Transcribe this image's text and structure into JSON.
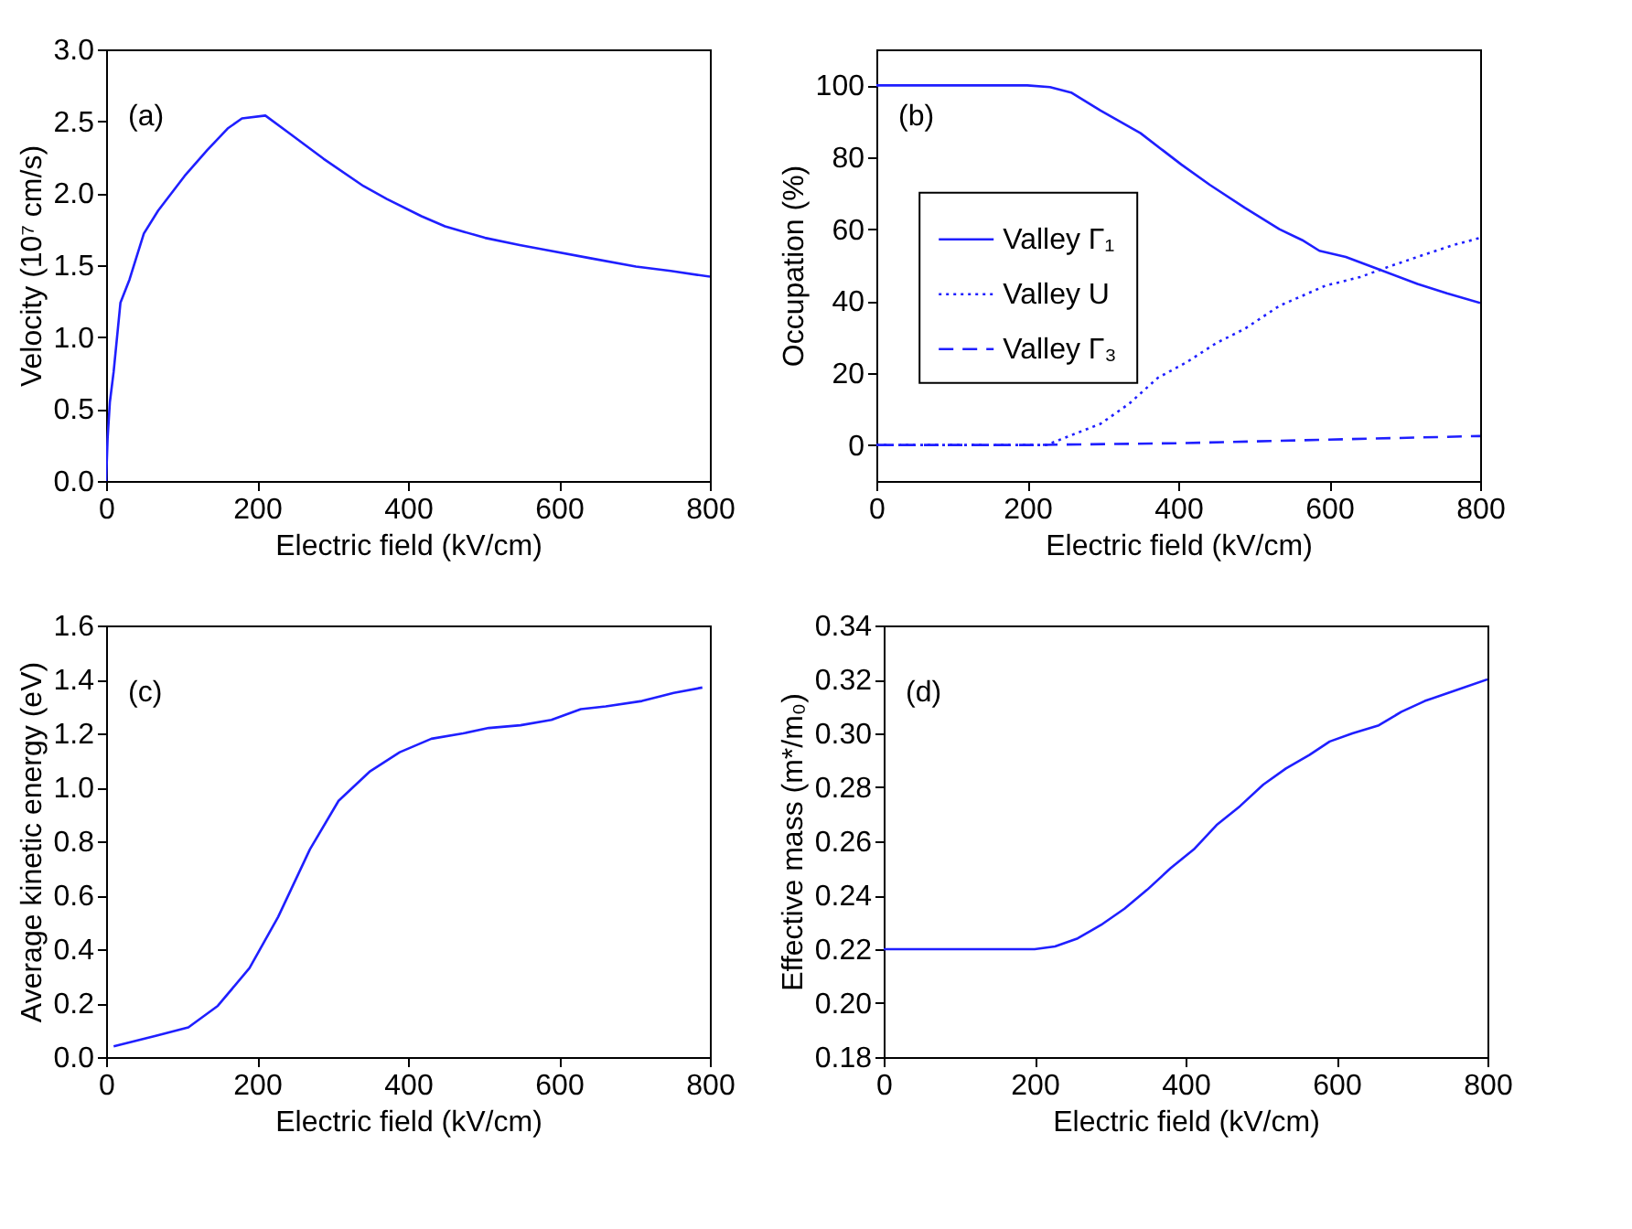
{
  "chart_data": [
    {
      "type": "line",
      "xlabel": "Electric field (kV/cm)",
      "ylabel": "Velocity (10⁷ cm/s)",
      "annotations": [
        "(a)"
      ],
      "xlim": [
        0,
        800
      ],
      "xticks": [
        0,
        200,
        400,
        600,
        800
      ],
      "ylim": [
        0,
        3.0
      ],
      "yticks": [
        {
          "value": 0,
          "label": "0.0"
        },
        {
          "value": 0.5,
          "label": "0.5"
        },
        {
          "value": 1,
          "label": "1.0"
        },
        {
          "value": 1.5,
          "label": "1.5"
        },
        {
          "value": 2,
          "label": "2.0"
        },
        {
          "value": 2.5,
          "label": "2.5"
        },
        {
          "value": 3,
          "label": "3.0"
        }
      ],
      "series": [
        {
          "color": "#1f1fff",
          "line_style": "solid",
          "x": [
            0,
            2,
            5,
            10,
            19,
            31,
            50,
            69,
            104,
            134,
            161,
            180,
            211,
            242,
            288,
            341,
            372,
            418,
            449,
            502,
            548,
            579,
            640,
            702,
            748,
            800
          ],
          "values": [
            0,
            0.3,
            0.55,
            0.76,
            1.24,
            1.4,
            1.72,
            1.88,
            2.12,
            2.3,
            2.45,
            2.52,
            2.54,
            2.42,
            2.24,
            2.05,
            1.96,
            1.84,
            1.77,
            1.69,
            1.64,
            1.61,
            1.55,
            1.49,
            1.46,
            1.42
          ]
        }
      ]
    },
    {
      "type": "line",
      "xlabel": "Electric field (kV/cm)",
      "ylabel": "Occupation (%)",
      "annotations": [
        "(b)"
      ],
      "xlim": [
        0,
        800
      ],
      "xticks": [
        0,
        200,
        400,
        600,
        800
      ],
      "ylim": [
        -10,
        110
      ],
      "yticks": [
        0,
        20,
        40,
        60,
        80,
        100
      ],
      "legend": "left",
      "series": [
        {
          "name": "Valley Γ₁",
          "color": "#1f1fff",
          "line_style": "solid",
          "x": [
            0,
            200,
            230,
            258,
            297,
            350,
            404,
            442,
            488,
            534,
            564,
            587,
            622,
            664,
            717,
            756,
            800
          ],
          "values": [
            100,
            100,
            99.5,
            98,
            93,
            86.7,
            78,
            72.3,
            66,
            60,
            57,
            54,
            52.3,
            49,
            44.8,
            42.2,
            39.5
          ]
        },
        {
          "name": "Valley U",
          "color": "#1f1fff",
          "line_style": "dotted",
          "x": [
            0,
            225,
            258,
            297,
            335,
            373,
            411,
            450,
            488,
            534,
            595,
            641,
            679,
            717,
            763,
            800
          ],
          "values": [
            0,
            0,
            2.7,
            5.9,
            11.5,
            18.7,
            23,
            28.3,
            32.3,
            38.7,
            44.3,
            46.7,
            49.6,
            52.3,
            55.5,
            57.6
          ]
        },
        {
          "name": "Valley Γ₃",
          "color": "#1f1fff",
          "line_style": "dashed",
          "x": [
            0,
            200,
            400,
            600,
            800
          ],
          "values": [
            0,
            0,
            0.5,
            1.5,
            2.5
          ]
        }
      ]
    },
    {
      "type": "line",
      "xlabel": "Electric field (kV/cm)",
      "ylabel": "Average kinetic energy (eV)",
      "annotations": [
        "(c)"
      ],
      "xlim": [
        0,
        800
      ],
      "xticks": [
        0,
        200,
        400,
        600,
        800
      ],
      "ylim": [
        0,
        1.6
      ],
      "yticks": [
        {
          "value": 0,
          "label": "0.0"
        },
        {
          "value": 0.2,
          "label": "0.2"
        },
        {
          "value": 0.4,
          "label": "0.4"
        },
        {
          "value": 0.6,
          "label": "0.6"
        },
        {
          "value": 0.8,
          "label": "0.8"
        },
        {
          "value": 1,
          "label": "1.0"
        },
        {
          "value": 1.2,
          "label": "1.2"
        },
        {
          "value": 1.4,
          "label": "1.4"
        },
        {
          "value": 1.6,
          "label": "1.6"
        }
      ],
      "series": [
        {
          "color": "#1f1fff",
          "line_style": "solid",
          "x": [
            10,
            67,
            109,
            148,
            190,
            228,
            270,
            308,
            350,
            389,
            431,
            473,
            507,
            549,
            590,
            629,
            662,
            710,
            752,
            790
          ],
          "values": [
            0.04,
            0.08,
            0.11,
            0.19,
            0.33,
            0.52,
            0.77,
            0.95,
            1.06,
            1.13,
            1.18,
            1.2,
            1.22,
            1.23,
            1.25,
            1.29,
            1.3,
            1.32,
            1.35,
            1.37
          ]
        }
      ]
    },
    {
      "type": "line",
      "xlabel": "Electric field (kV/cm)",
      "ylabel": "Effective mass (m*/m₀)",
      "annotations": [
        "(d)"
      ],
      "xlim": [
        0,
        800
      ],
      "xticks": [
        0,
        200,
        400,
        600,
        800
      ],
      "ylim": [
        0.18,
        0.34
      ],
      "yticks": [
        {
          "value": 0.18,
          "label": "0.18"
        },
        {
          "value": 0.2,
          "label": "0.20"
        },
        {
          "value": 0.22,
          "label": "0.22"
        },
        {
          "value": 0.24,
          "label": "0.24"
        },
        {
          "value": 0.26,
          "label": "0.26"
        },
        {
          "value": 0.28,
          "label": "0.28"
        },
        {
          "value": 0.3,
          "label": "0.30"
        },
        {
          "value": 0.32,
          "label": "0.32"
        },
        {
          "value": 0.34,
          "label": "0.34"
        }
      ],
      "series": [
        {
          "color": "#1f1fff",
          "line_style": "solid",
          "x": [
            0,
            200,
            227,
            257,
            288,
            319,
            349,
            380,
            411,
            441,
            472,
            503,
            533,
            564,
            591,
            621,
            656,
            686,
            717,
            748,
            800
          ],
          "values": [
            0.22,
            0.22,
            0.221,
            0.224,
            0.229,
            0.235,
            0.242,
            0.25,
            0.257,
            0.266,
            0.273,
            0.281,
            0.287,
            0.292,
            0.297,
            0.3,
            0.303,
            0.308,
            0.312,
            0.315,
            0.32
          ]
        }
      ]
    }
  ]
}
